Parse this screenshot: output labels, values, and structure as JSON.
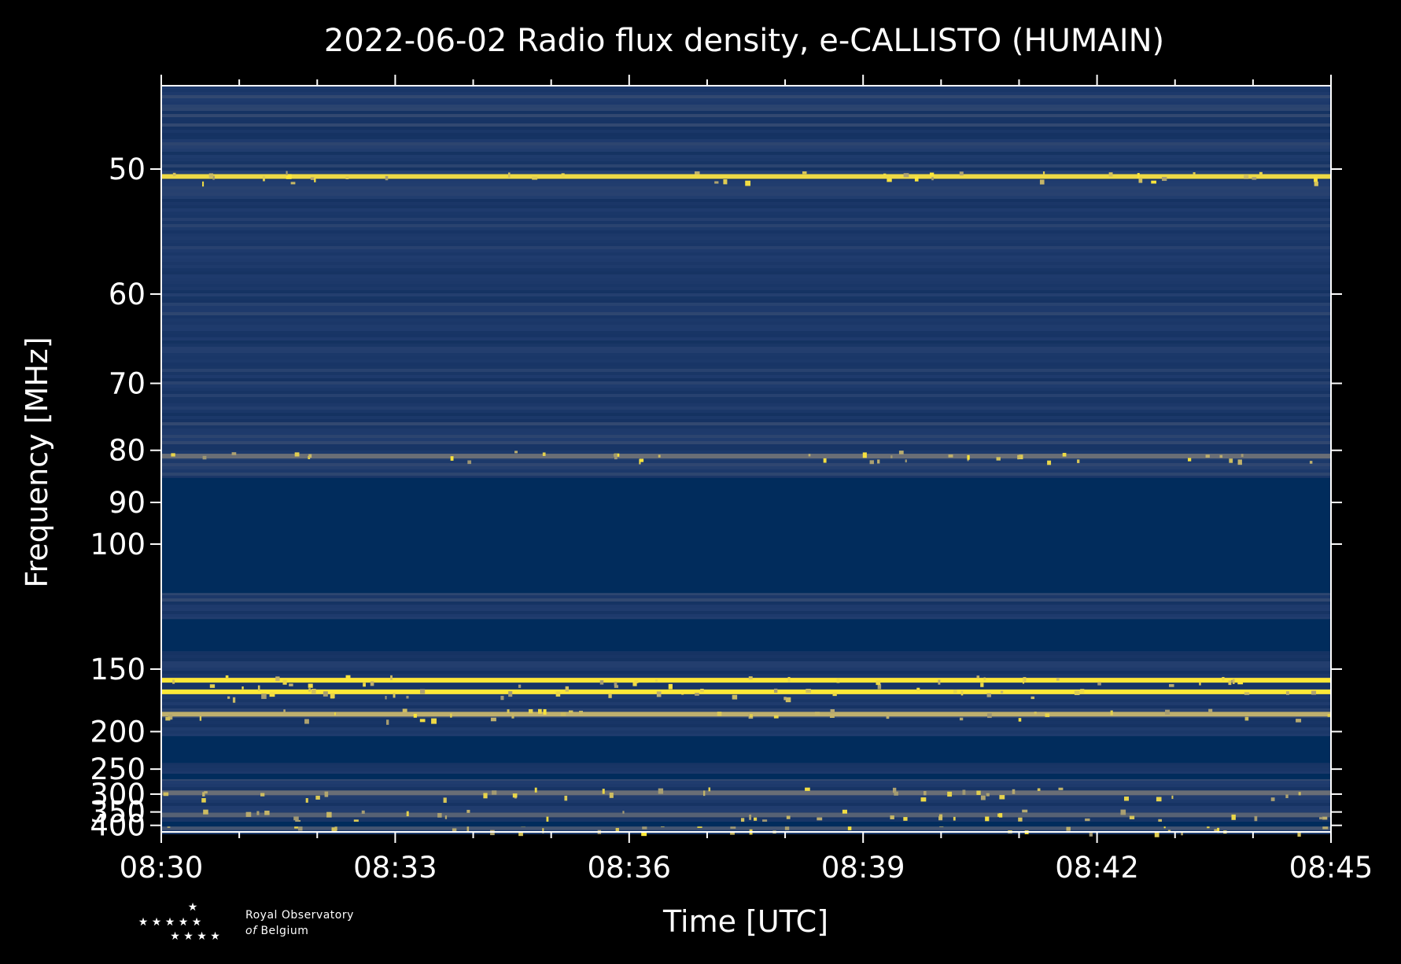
{
  "chart_data": {
    "type": "heatmap",
    "title": "2022-06-02 Radio flux density, e-CALLISTO (HUMAIN)",
    "xlabel": "Time [UTC]",
    "ylabel": "Frequency [MHz]",
    "x_ticks": [
      "08:30",
      "08:33",
      "08:36",
      "08:39",
      "08:42",
      "08:45"
    ],
    "x_range_minutes": [
      0,
      15
    ],
    "y_ticks": [
      50,
      60,
      70,
      80,
      90,
      100,
      150,
      200,
      250,
      300,
      350,
      400
    ],
    "y_range_mhz": [
      45,
      430
    ],
    "y_scale": "reciprocal",
    "colormap": "cividis",
    "colors": {
      "background": "#000000",
      "low": "#00204c",
      "mid": "#7c7b78",
      "high": "#fee838",
      "blank_band": "#012c5c"
    },
    "empty_bands_mhz": [
      [
        85,
        115
      ],
      [
        125,
        140
      ],
      [
        205,
        240
      ],
      [
        258,
        268
      ],
      [
        385,
        405
      ]
    ],
    "emission_lines": [
      {
        "freq_mhz": 50.5,
        "intensity": 0.95
      },
      {
        "freq_mhz": 81,
        "intensity": 0.55
      },
      {
        "freq_mhz": 157,
        "intensity": 1.0
      },
      {
        "freq_mhz": 165,
        "intensity": 1.0
      },
      {
        "freq_mhz": 183,
        "intensity": 0.8
      },
      {
        "freq_mhz": 297,
        "intensity": 0.55
      },
      {
        "freq_mhz": 360,
        "intensity": 0.5
      },
      {
        "freq_mhz": 410,
        "intensity": 0.45
      }
    ]
  },
  "logo": {
    "line1": "Royal Observatory",
    "line2_italic": "of",
    "line2": "Belgium"
  }
}
